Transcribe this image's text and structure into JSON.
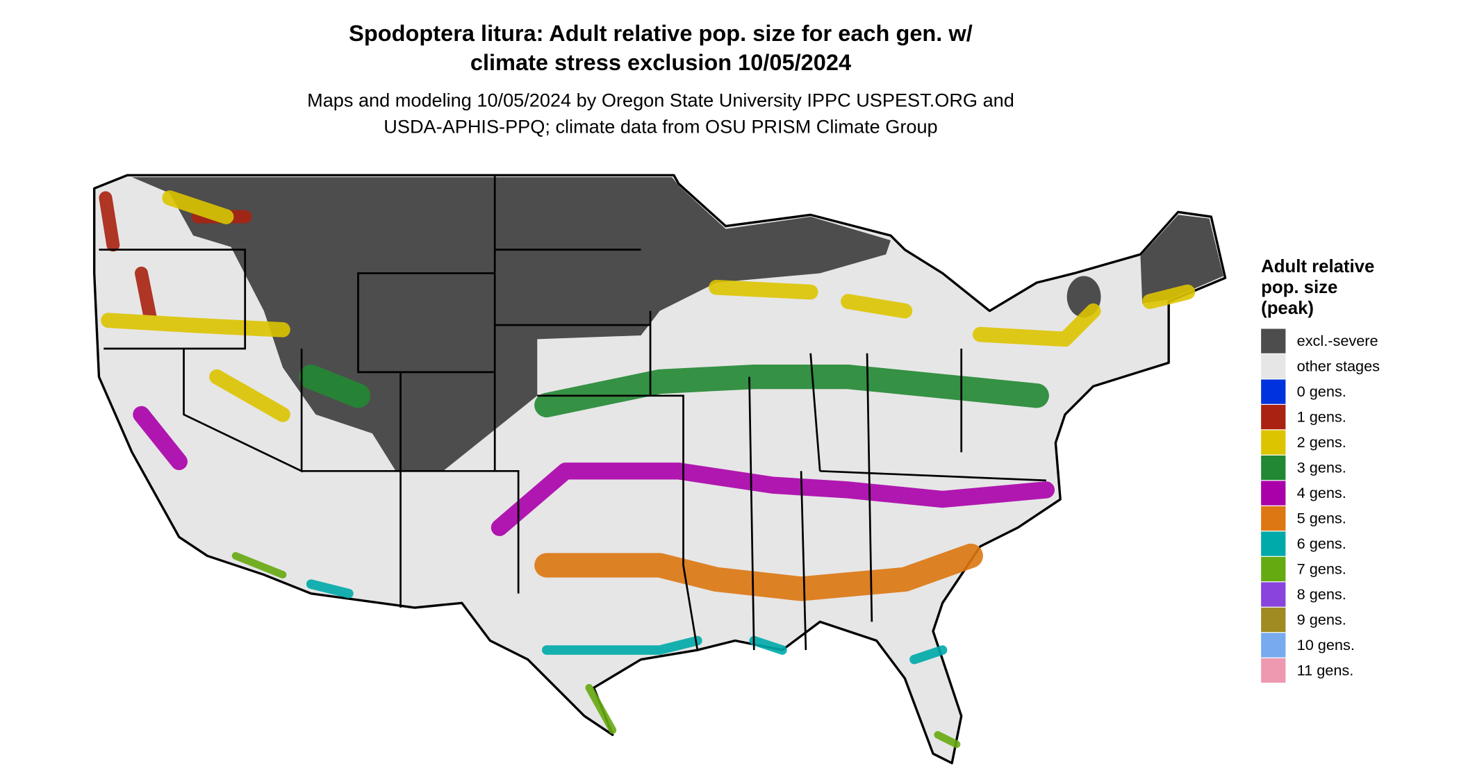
{
  "map": {
    "title_lines": [
      "Spodoptera litura: Adult relative pop. size for each gen. w/",
      "climate stress exclusion 10/05/2024"
    ],
    "subtitle_lines": [
      "Maps and modeling 10/05/2024 by Oregon State University IPPC USPEST.ORG and",
      "USDA-APHIS-PPQ; climate data from OSU PRISM Climate Group"
    ],
    "legend": {
      "title_lines": [
        "Adult relative",
        "pop. size",
        "(peak)"
      ],
      "items": [
        {
          "label": "excl.-severe",
          "color": "#4d4d4d"
        },
        {
          "label": "other stages",
          "color": "#e6e6e6"
        },
        {
          "label": "0 gens.",
          "color": "#0033dd"
        },
        {
          "label": "1 gens.",
          "color": "#aa2211"
        },
        {
          "label": "2 gens.",
          "color": "#ddc400"
        },
        {
          "label": "3 gens.",
          "color": "#228833"
        },
        {
          "label": "4 gens.",
          "color": "#aa00aa"
        },
        {
          "label": "5 gens.",
          "color": "#dd7711"
        },
        {
          "label": "6 gens.",
          "color": "#00aaaa"
        },
        {
          "label": "7 gens.",
          "color": "#66aa11"
        },
        {
          "label": "8 gens.",
          "color": "#8844dd"
        },
        {
          "label": "9 gens.",
          "color": "#a08a22"
        },
        {
          "label": "10 gens.",
          "color": "#77aaee"
        },
        {
          "label": "11 gens.",
          "color": "#ee99b0"
        }
      ]
    }
  }
}
